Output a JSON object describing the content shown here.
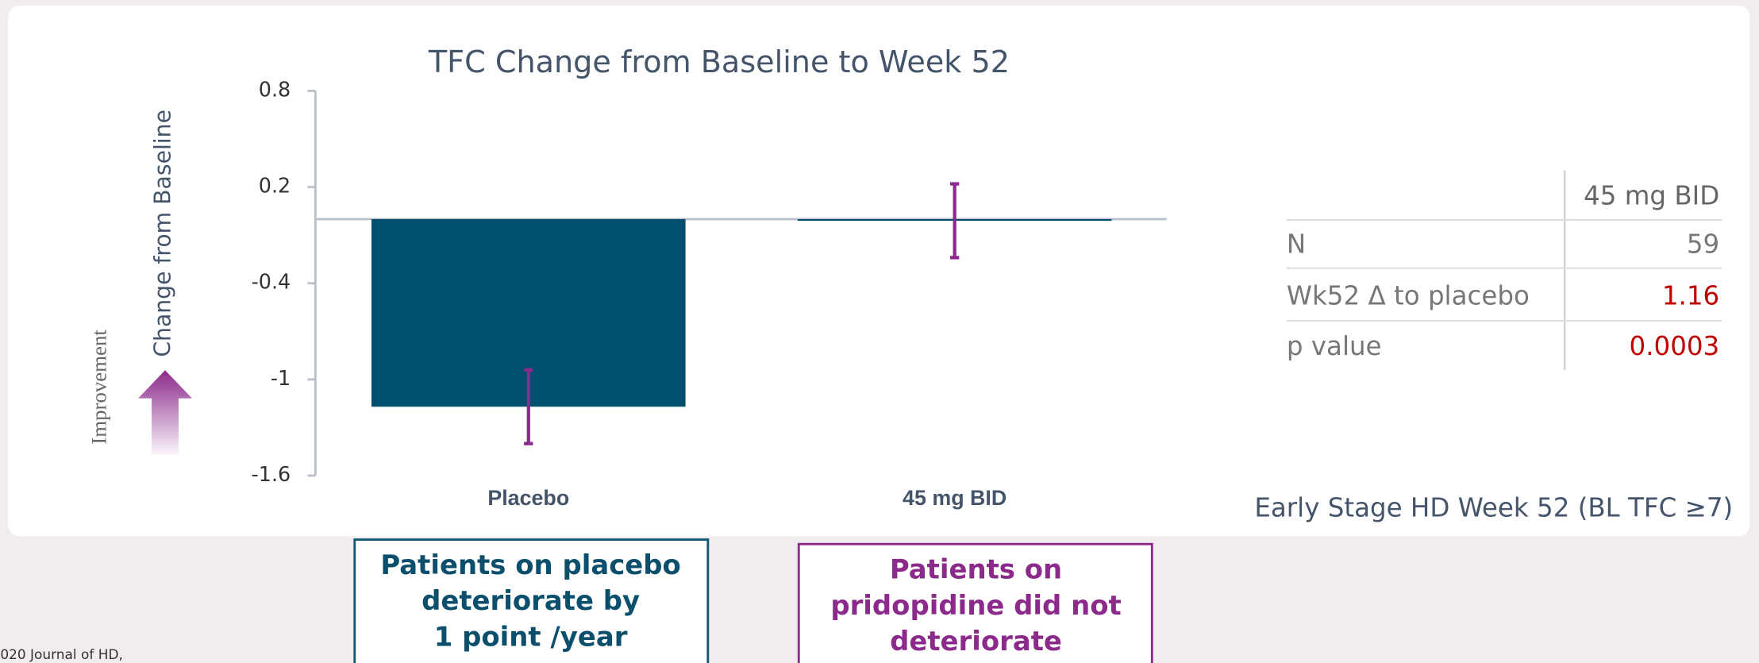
{
  "chart_data": {
    "type": "bar",
    "title": "TFC Change from Baseline to Week 52",
    "y_label": "Change from Baseline",
    "improvement_label": "Improvement",
    "categories": [
      "Placebo",
      "45 mg BID"
    ],
    "values": [
      -1.17,
      -0.01
    ],
    "errors": [
      0.23,
      0.23
    ],
    "color": "#004f6e",
    "error_color": "#8b2a8b",
    "ylim": [
      -1.6,
      0.8
    ],
    "yticks": [
      -1.6,
      -1,
      -0.4,
      0.2,
      0.8
    ],
    "grid": false
  },
  "table": {
    "header": [
      "",
      "45 mg BID"
    ],
    "rows": [
      [
        "N",
        "59"
      ],
      [
        "Wk52 Δ to placebo",
        "1.16"
      ],
      [
        "p value",
        "0.0003"
      ]
    ]
  },
  "note": "Early Stage HD Week 52 (BL TFC ≥7)",
  "callouts": [
    {
      "lines": [
        "Patients on placebo",
        "deteriorate by",
        "1 point /year"
      ]
    },
    {
      "lines": [
        "Patients on",
        "pridopidine did not",
        "deteriorate"
      ]
    }
  ],
  "footer": "020 Journal of HD,"
}
